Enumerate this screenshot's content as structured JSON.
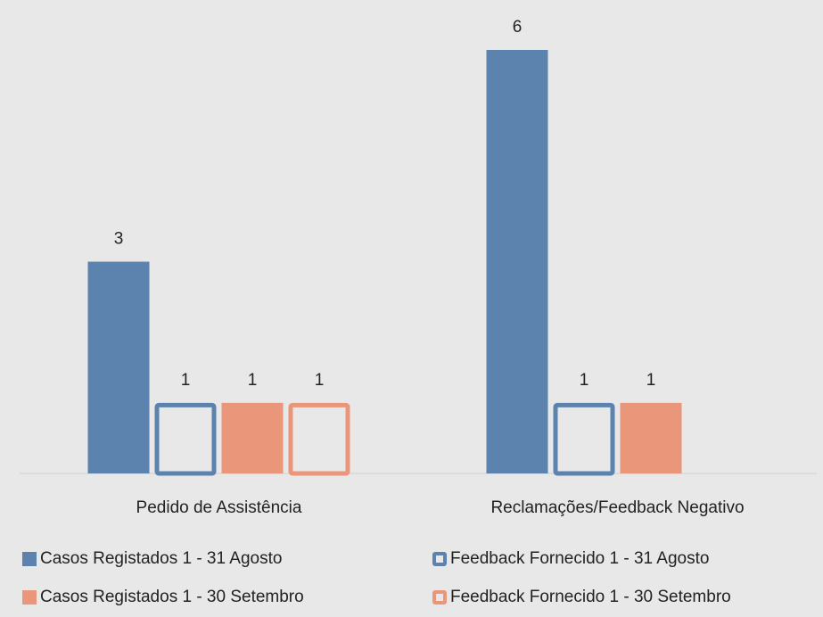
{
  "chart_data": {
    "type": "bar",
    "categories": [
      "Pedido de Assistência",
      "Reclamações/Feedback Negativo"
    ],
    "series": [
      {
        "name": "Casos Registados 1 - 31 Agosto",
        "color": "#5b83ae",
        "filled": true,
        "values": [
          3,
          6
        ]
      },
      {
        "name": "Feedback Fornecido 1 - 31 Agosto",
        "color": "#5b83ae",
        "filled": false,
        "values": [
          1,
          1
        ]
      },
      {
        "name": "Casos Registados 1 - 30 Setembro",
        "color": "#e9967b",
        "filled": true,
        "values": [
          1,
          1
        ]
      },
      {
        "name": "Feedback Fornecido 1 - 30 Setembro",
        "color": "#e9967b",
        "filled": false,
        "values": [
          1,
          null
        ]
      }
    ],
    "ylim": [
      0,
      6
    ],
    "data_labels": true,
    "legend": "bottom"
  }
}
